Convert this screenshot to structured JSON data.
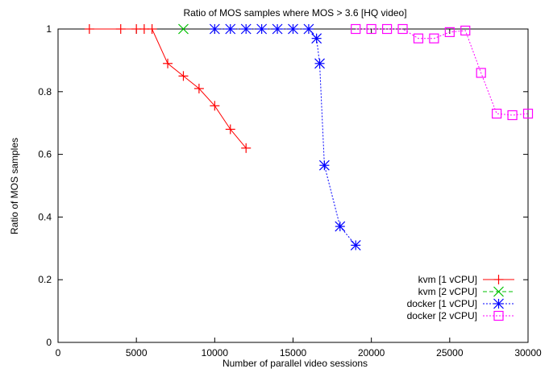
{
  "chart_data": {
    "type": "line",
    "title": "Ratio of MOS samples where MOS > 3.6 [HQ video]",
    "xlabel": "Number of parallel video sessions",
    "ylabel": "Ratio of MOS samples",
    "xlim": [
      0,
      30000
    ],
    "ylim": [
      0,
      1
    ],
    "xticks": [
      "0",
      "5000",
      "10000",
      "15000",
      "20000",
      "25000",
      "30000"
    ],
    "yticks": [
      "0",
      "0.2",
      "0.4",
      "0.6",
      "0.8",
      "1"
    ],
    "grid": false,
    "legend_position": "bottom-right",
    "series": [
      {
        "name": "kvm [1 vCPU]",
        "color": "#ff0000",
        "marker": "plus",
        "dash": "solid",
        "x": [
          2000,
          4000,
          5000,
          5500,
          6000,
          7000,
          8000,
          9000,
          10000,
          11000,
          12000
        ],
        "y": [
          1,
          1,
          1,
          1,
          1,
          0.89,
          0.85,
          0.81,
          0.755,
          0.68,
          0.62
        ]
      },
      {
        "name": "kvm [2 vCPU]",
        "color": "#00c000",
        "marker": "cross",
        "dash": "dashed",
        "x": [
          8000
        ],
        "y": [
          1
        ]
      },
      {
        "name": "docker [1 vCPU]",
        "color": "#0000ff",
        "marker": "star",
        "dash": "dotted",
        "x": [
          10000,
          11000,
          12000,
          13000,
          14000,
          15000,
          16000,
          16500,
          16700,
          17000,
          18000,
          19000
        ],
        "y": [
          1,
          1,
          1,
          1,
          1,
          1,
          1,
          0.97,
          0.89,
          0.565,
          0.37,
          0.31
        ]
      },
      {
        "name": "docker [2 vCPU]",
        "color": "#ff00ff",
        "marker": "square",
        "dash": "dotted",
        "x": [
          19000,
          20000,
          21000,
          22000,
          23000,
          24000,
          25000,
          26000,
          27000,
          28000,
          29000,
          30000
        ],
        "y": [
          1,
          1,
          1,
          1,
          0.97,
          0.97,
          0.99,
          0.995,
          0.86,
          0.73,
          0.725,
          0.73
        ]
      }
    ]
  }
}
